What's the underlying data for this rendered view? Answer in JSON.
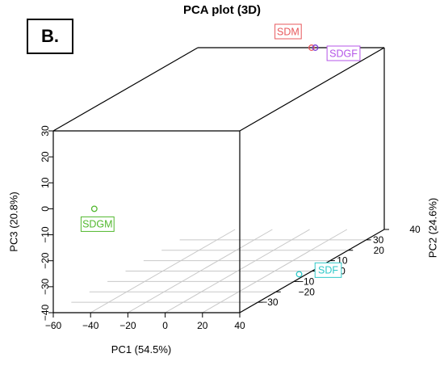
{
  "panel_label": "B.",
  "chart_data": {
    "type": "scatter",
    "title": "PCA plot (3D)",
    "axes": {
      "pc1": {
        "label": "PC1 (54.5%)",
        "range": [
          -60,
          40
        ],
        "ticks": [
          -60,
          -40,
          -20,
          0,
          20,
          40
        ]
      },
      "pc2": {
        "label": "PC2 (24.6%)",
        "range": [
          -40,
          40
        ],
        "ticks": [
          -30,
          -20,
          -10,
          0,
          10,
          20,
          30,
          40
        ]
      },
      "pc3": {
        "label": "PC3 (20.8%)",
        "range": [
          -40,
          30
        ],
        "ticks": [
          -40,
          -30,
          -20,
          -10,
          0,
          10,
          20,
          30
        ]
      }
    },
    "grid": "floor",
    "points": [
      {
        "name": "SDM",
        "pc1": 1,
        "pc2": 40,
        "pc3": 30,
        "color": "#e8585c"
      },
      {
        "name": "SDGF",
        "pc1": 3,
        "pc2": 40,
        "pc3": 30,
        "color": "#7b3fd6"
      },
      {
        "name": "SDGM",
        "pc1": -38,
        "pc2": -40,
        "pc3": 0,
        "color": "#52b82e"
      },
      {
        "name": "SDF",
        "pc1": 36,
        "pc2": -3,
        "pc3": -40,
        "color": "#2fc8c8"
      }
    ],
    "label_colors": {
      "SDM": "#e8585c",
      "SDGF": "#b454e8",
      "SDGM": "#52b82e",
      "SDF": "#2fc8c8"
    }
  }
}
